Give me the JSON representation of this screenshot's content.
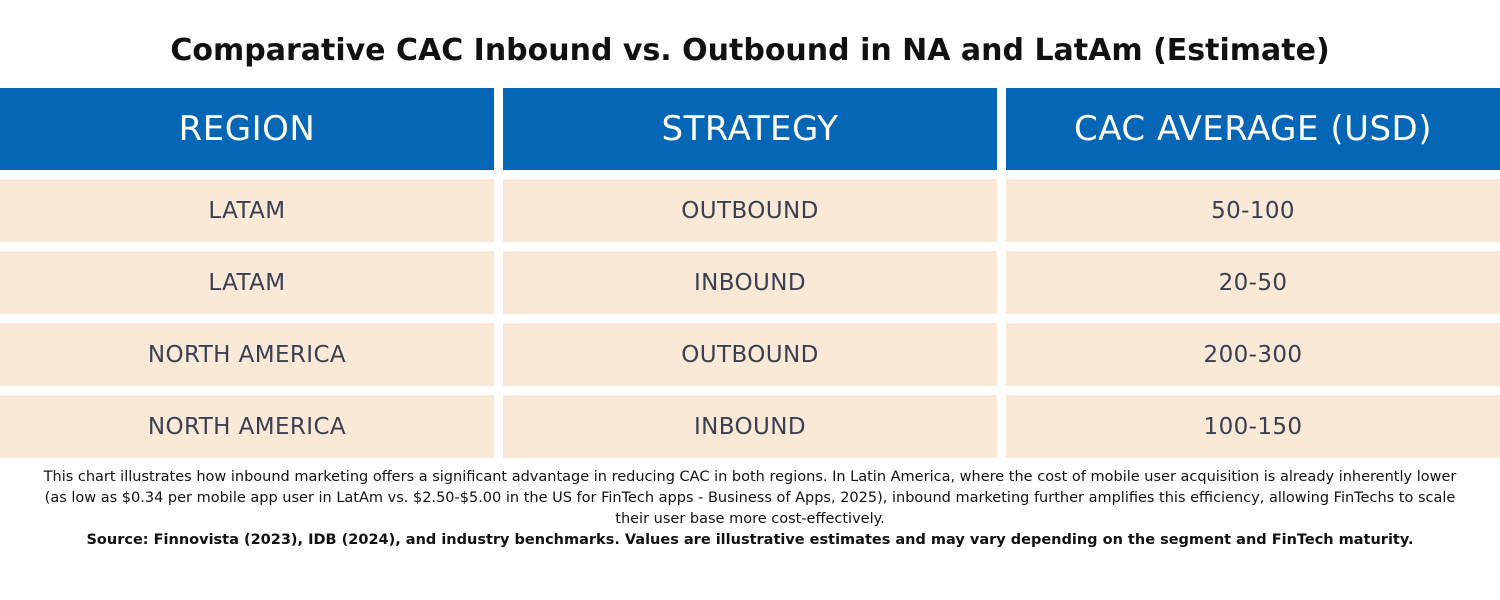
{
  "chart_data": {
    "type": "table",
    "title": "Comparative CAC Inbound vs. Outbound in NA and LatAm (Estimate)",
    "columns": [
      "REGION",
      "STRATEGY",
      "CAC AVERAGE (USD)"
    ],
    "rows": [
      [
        "LATAM",
        "OUTBOUND",
        "50-100"
      ],
      [
        "LATAM",
        "INBOUND",
        "20-50"
      ],
      [
        "NORTH AMERICA",
        "OUTBOUND",
        "200-300"
      ],
      [
        "NORTH AMERICA",
        "INBOUND",
        "100-150"
      ]
    ],
    "note": "This chart illustrates how inbound marketing offers a significant advantage in reducing CAC in both regions. In Latin America, where the cost of mobile user acquisition is already inherently lower (as low as $0.34 per mobile app user in LatAm vs. $2.50-$5.00 in the US for FinTech apps - Business of Apps, 2025), inbound marketing further amplifies this efficiency, allowing FinTechs to scale their user base more cost-effectively.",
    "source": "Source: Finnovista (2023), IDB (2024), and industry benchmarks. Values are illustrative estimates and may vary depending on the segment and FinTech maturity."
  },
  "colors": {
    "header_background": "#0466b4",
    "header_text": "#ffffff",
    "row_background": "#fbe9d7",
    "row_text": "#3b3f52"
  }
}
